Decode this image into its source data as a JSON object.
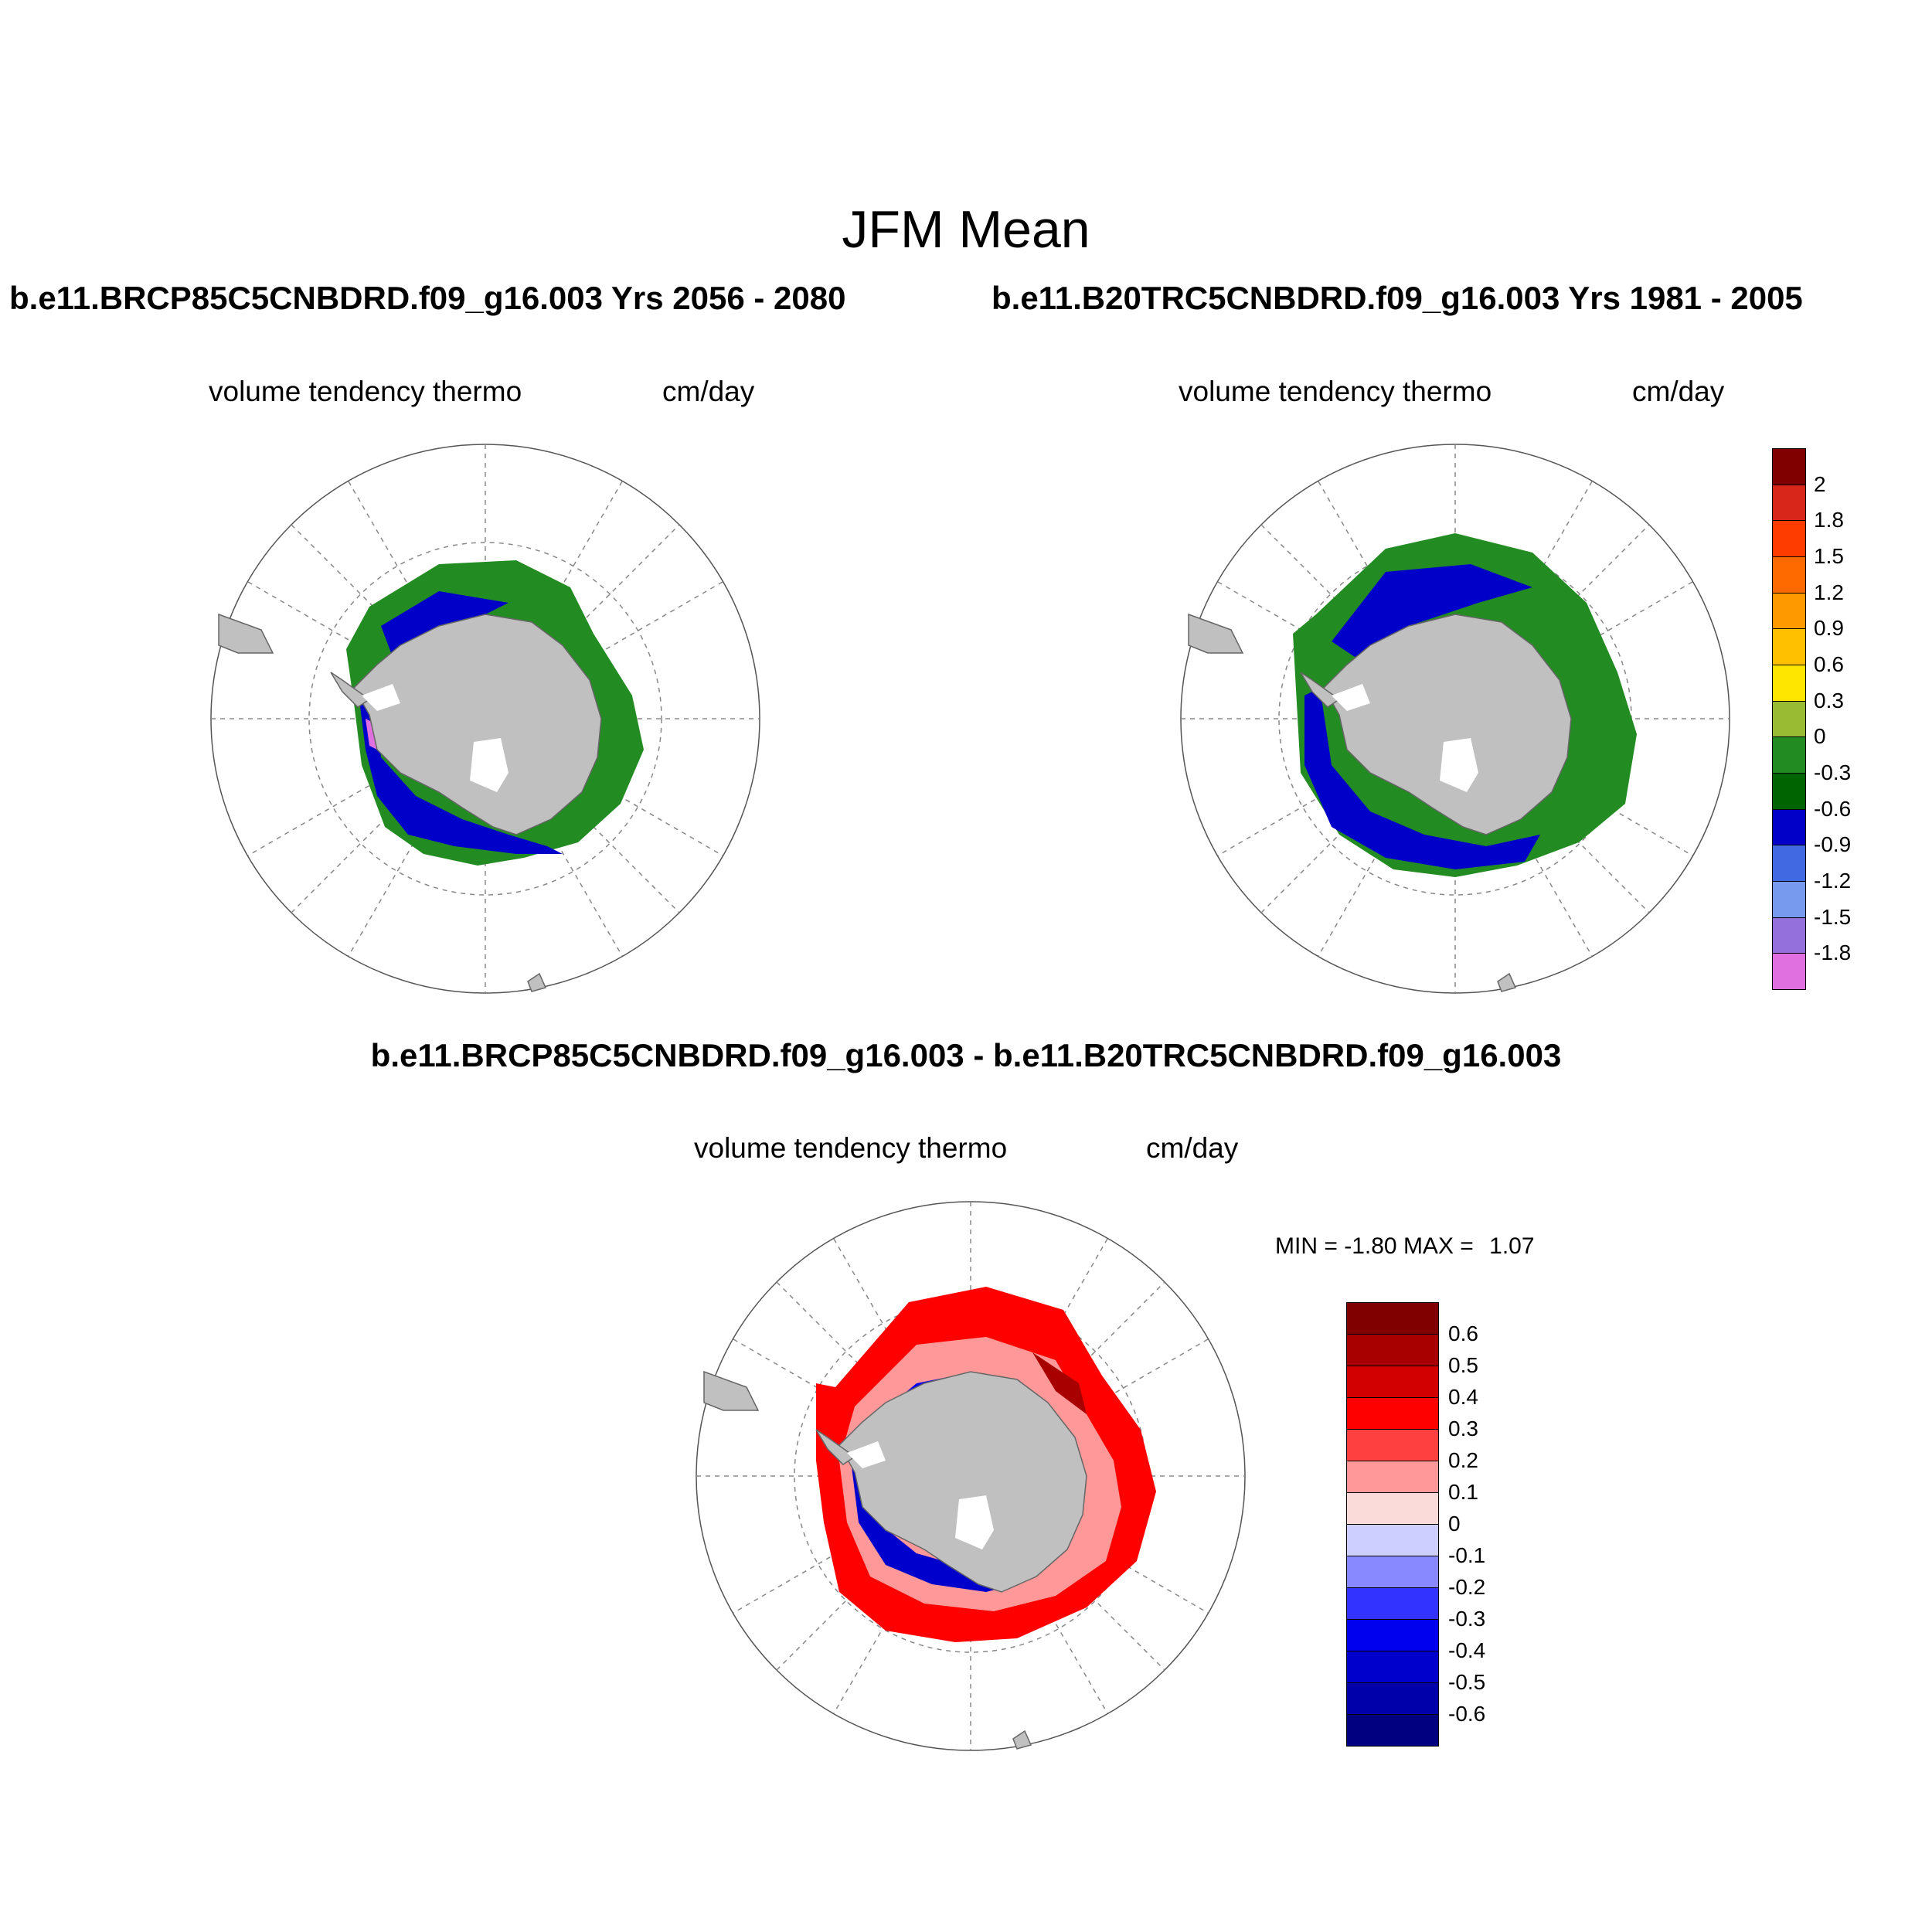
{
  "title": "JFM Mean",
  "panels": {
    "left": {
      "run": "b.e11.BRCP85C5CNBDRD.f09_g16.003  Yrs 2056 - 2080",
      "variable": "volume tendency thermo",
      "units": "cm/day"
    },
    "right": {
      "run": "b.e11.B20TRC5CNBDRD.f09_g16.003  Yrs 1981 - 2005",
      "variable": "volume tendency thermo",
      "units": "cm/day"
    },
    "diff": {
      "title": "b.e11.BRCP85C5CNBDRD.f09_g16.003 - b.e11.B20TRC5CNBDRD.f09_g16.003",
      "variable": "volume tendency thermo",
      "units": "cm/day",
      "min_label": "MIN =",
      "min_value": "-1.80",
      "max_label": "MAX =",
      "max_value": "1.07"
    }
  },
  "colorbar_main": {
    "colors": [
      "#800000",
      "#d9261a",
      "#ff3c00",
      "#ff6a00",
      "#ff9900",
      "#ffc000",
      "#ffe600",
      "#99bb33",
      "#228b22",
      "#006400",
      "#0000c8",
      "#4169e1",
      "#7799ee",
      "#9370db",
      "#e070e0"
    ],
    "labels": [
      "2",
      "1.8",
      "1.5",
      "1.2",
      "0.9",
      "0.6",
      "0.3",
      "0",
      "-0.3",
      "-0.6",
      "-0.9",
      "-1.2",
      "-1.5",
      "-1.8"
    ]
  },
  "colorbar_diff": {
    "colors": [
      "#800000",
      "#a80000",
      "#d20000",
      "#ff0000",
      "#ff4040",
      "#ff9999",
      "#fbdada",
      "#cccfff",
      "#8888ff",
      "#3333ff",
      "#0000ee",
      "#0000cc",
      "#0000aa",
      "#000080"
    ],
    "labels": [
      "0.6",
      "0.5",
      "0.4",
      "0.3",
      "0.2",
      "0.1",
      "0",
      "-0.1",
      "-0.2",
      "-0.3",
      "-0.4",
      "-0.5",
      "-0.6"
    ]
  },
  "map_colors": {
    "land": "#c0c0c0",
    "ice_shelf": "#ffffff",
    "grid": "#888888"
  }
}
